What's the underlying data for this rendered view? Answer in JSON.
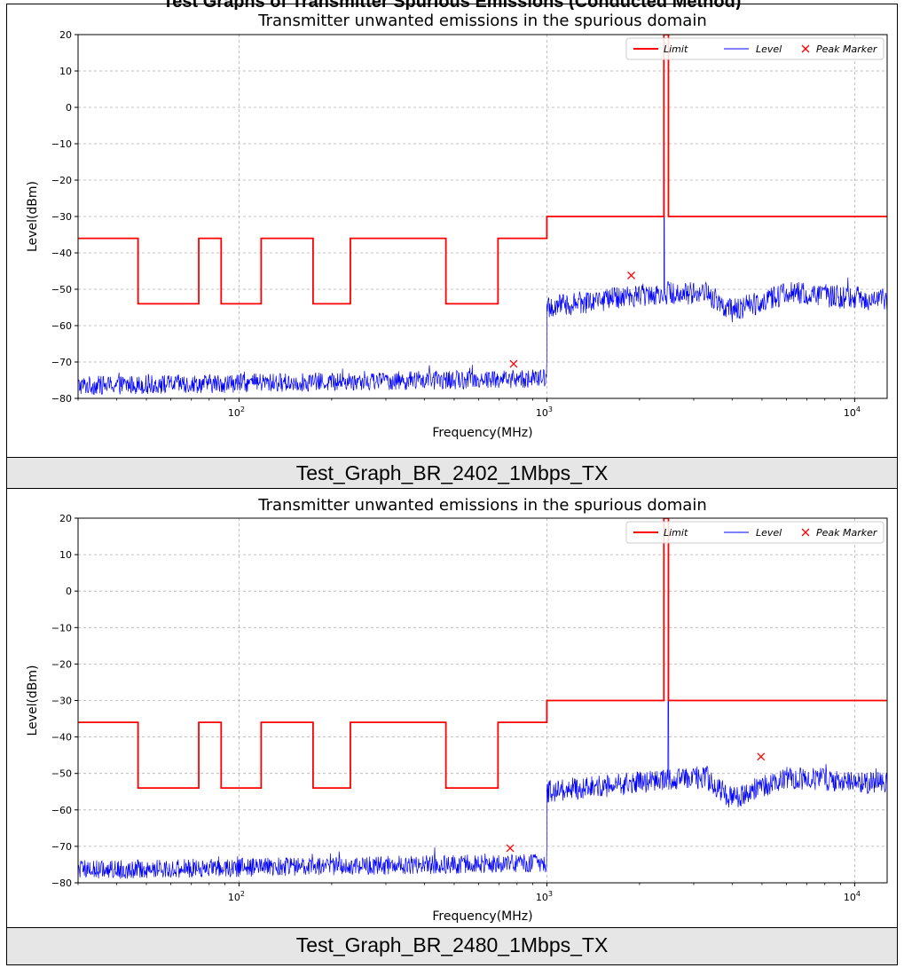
{
  "page": {
    "heading": "Test Graphs of Transmitter Spurious Emissions (Conducted Method)"
  },
  "charts": [
    {
      "caption": "Test_Graph_BR_2402_1Mbps_TX",
      "title": "Transmitter unwanted emissions in the spurious domain",
      "xlabel": "Frequency(MHz)",
      "ylabel": "Level(dBm)",
      "legend": [
        "Limit",
        "Level",
        "Peak Marker"
      ]
    },
    {
      "caption": "Test_Graph_BR_2480_1Mbps_TX",
      "title": "Transmitter unwanted emissions in the spurious domain",
      "xlabel": "Frequency(MHz)",
      "ylabel": "Level(dBm)",
      "legend": [
        "Limit",
        "Level",
        "Peak Marker"
      ]
    }
  ],
  "chart_data": [
    {
      "type": "line",
      "title": "Transmitter unwanted emissions in the spurious domain",
      "xlabel": "Frequency(MHz)",
      "ylabel": "Level(dBm)",
      "xscale": "log",
      "xlim": [
        30,
        12750
      ],
      "ylim": [
        -80,
        20
      ],
      "yticks": [
        -80,
        -70,
        -60,
        -50,
        -40,
        -30,
        -20,
        -10,
        0,
        10,
        20
      ],
      "xticks": [
        {
          "value": 100,
          "base": "10",
          "exp": "2"
        },
        {
          "value": 1000,
          "base": "10",
          "exp": "3"
        },
        {
          "value": 10000,
          "base": "10",
          "exp": "4"
        }
      ],
      "grid": true,
      "legend_position": "top-right",
      "series": [
        {
          "name": "Limit",
          "color": "#ff0000",
          "x": [
            30,
            47,
            47,
            74,
            74,
            87.5,
            87.5,
            118,
            118,
            174,
            174,
            230,
            230,
            470,
            470,
            694,
            694,
            1000,
            1000,
            2400,
            2400,
            2483.5,
            2483.5,
            12750
          ],
          "y": [
            -36,
            -36,
            -54,
            -54,
            -36,
            -36,
            -54,
            -54,
            -36,
            -36,
            -54,
            -54,
            -36,
            -36,
            -54,
            -54,
            -36,
            -36,
            -30,
            -30,
            20,
            20,
            -30,
            -30
          ]
        },
        {
          "name": "Level",
          "color": "#0000ff",
          "noise_segments": [
            {
              "x": [
                30,
                1000
              ],
              "y_start": -76.5,
              "y_end": -74.5,
              "spread": 2.6
            },
            {
              "x": [
                1000,
                12750
              ],
              "y_points": [
                [
                  1000,
                  -55
                ],
                [
                  1800,
                  -52
                ],
                [
                  2300,
                  -51
                ],
                [
                  3300,
                  -51
                ],
                [
                  4000,
                  -56
                ],
                [
                  6000,
                  -51
                ],
                [
                  12750,
                  -53
                ]
              ],
              "spread": 3.2
            }
          ],
          "spike": {
            "x": 2402,
            "y": 11
          }
        },
        {
          "name": "Peak Marker",
          "color": "#ff0000",
          "marker": "x",
          "points": [
            {
              "x": 780,
              "y": -70.5
            },
            {
              "x": 1880,
              "y": -46.2
            }
          ]
        }
      ]
    },
    {
      "type": "line",
      "title": "Transmitter unwanted emissions in the spurious domain",
      "xlabel": "Frequency(MHz)",
      "ylabel": "Level(dBm)",
      "xscale": "log",
      "xlim": [
        30,
        12750
      ],
      "ylim": [
        -80,
        20
      ],
      "yticks": [
        -80,
        -70,
        -60,
        -50,
        -40,
        -30,
        -20,
        -10,
        0,
        10,
        20
      ],
      "xticks": [
        {
          "value": 100,
          "base": "10",
          "exp": "2"
        },
        {
          "value": 1000,
          "base": "10",
          "exp": "3"
        },
        {
          "value": 10000,
          "base": "10",
          "exp": "4"
        }
      ],
      "grid": true,
      "legend_position": "top-right",
      "series": [
        {
          "name": "Limit",
          "color": "#ff0000",
          "x": [
            30,
            47,
            47,
            74,
            74,
            87.5,
            87.5,
            118,
            118,
            174,
            174,
            230,
            230,
            470,
            470,
            694,
            694,
            1000,
            1000,
            2400,
            2400,
            2483.5,
            2483.5,
            12750
          ],
          "y": [
            -36,
            -36,
            -54,
            -54,
            -36,
            -36,
            -54,
            -54,
            -36,
            -36,
            -54,
            -54,
            -36,
            -36,
            -54,
            -54,
            -36,
            -36,
            -30,
            -30,
            20,
            20,
            -30,
            -30
          ]
        },
        {
          "name": "Level",
          "color": "#0000ff",
          "noise_segments": [
            {
              "x": [
                30,
                1000
              ],
              "y_start": -76.5,
              "y_end": -74.5,
              "spread": 2.6
            },
            {
              "x": [
                1000,
                12750
              ],
              "y_points": [
                [
                  1000,
                  -55
                ],
                [
                  1800,
                  -53
                ],
                [
                  2300,
                  -52
                ],
                [
                  3300,
                  -51
                ],
                [
                  4000,
                  -57
                ],
                [
                  6000,
                  -51
                ],
                [
                  12750,
                  -53
                ]
              ],
              "spread": 3.2
            }
          ],
          "spike": {
            "x": 2480,
            "y": 11
          }
        },
        {
          "name": "Peak Marker",
          "color": "#ff0000",
          "marker": "x",
          "points": [
            {
              "x": 760,
              "y": -70.5
            },
            {
              "x": 4960,
              "y": -45.4
            }
          ]
        }
      ]
    }
  ]
}
